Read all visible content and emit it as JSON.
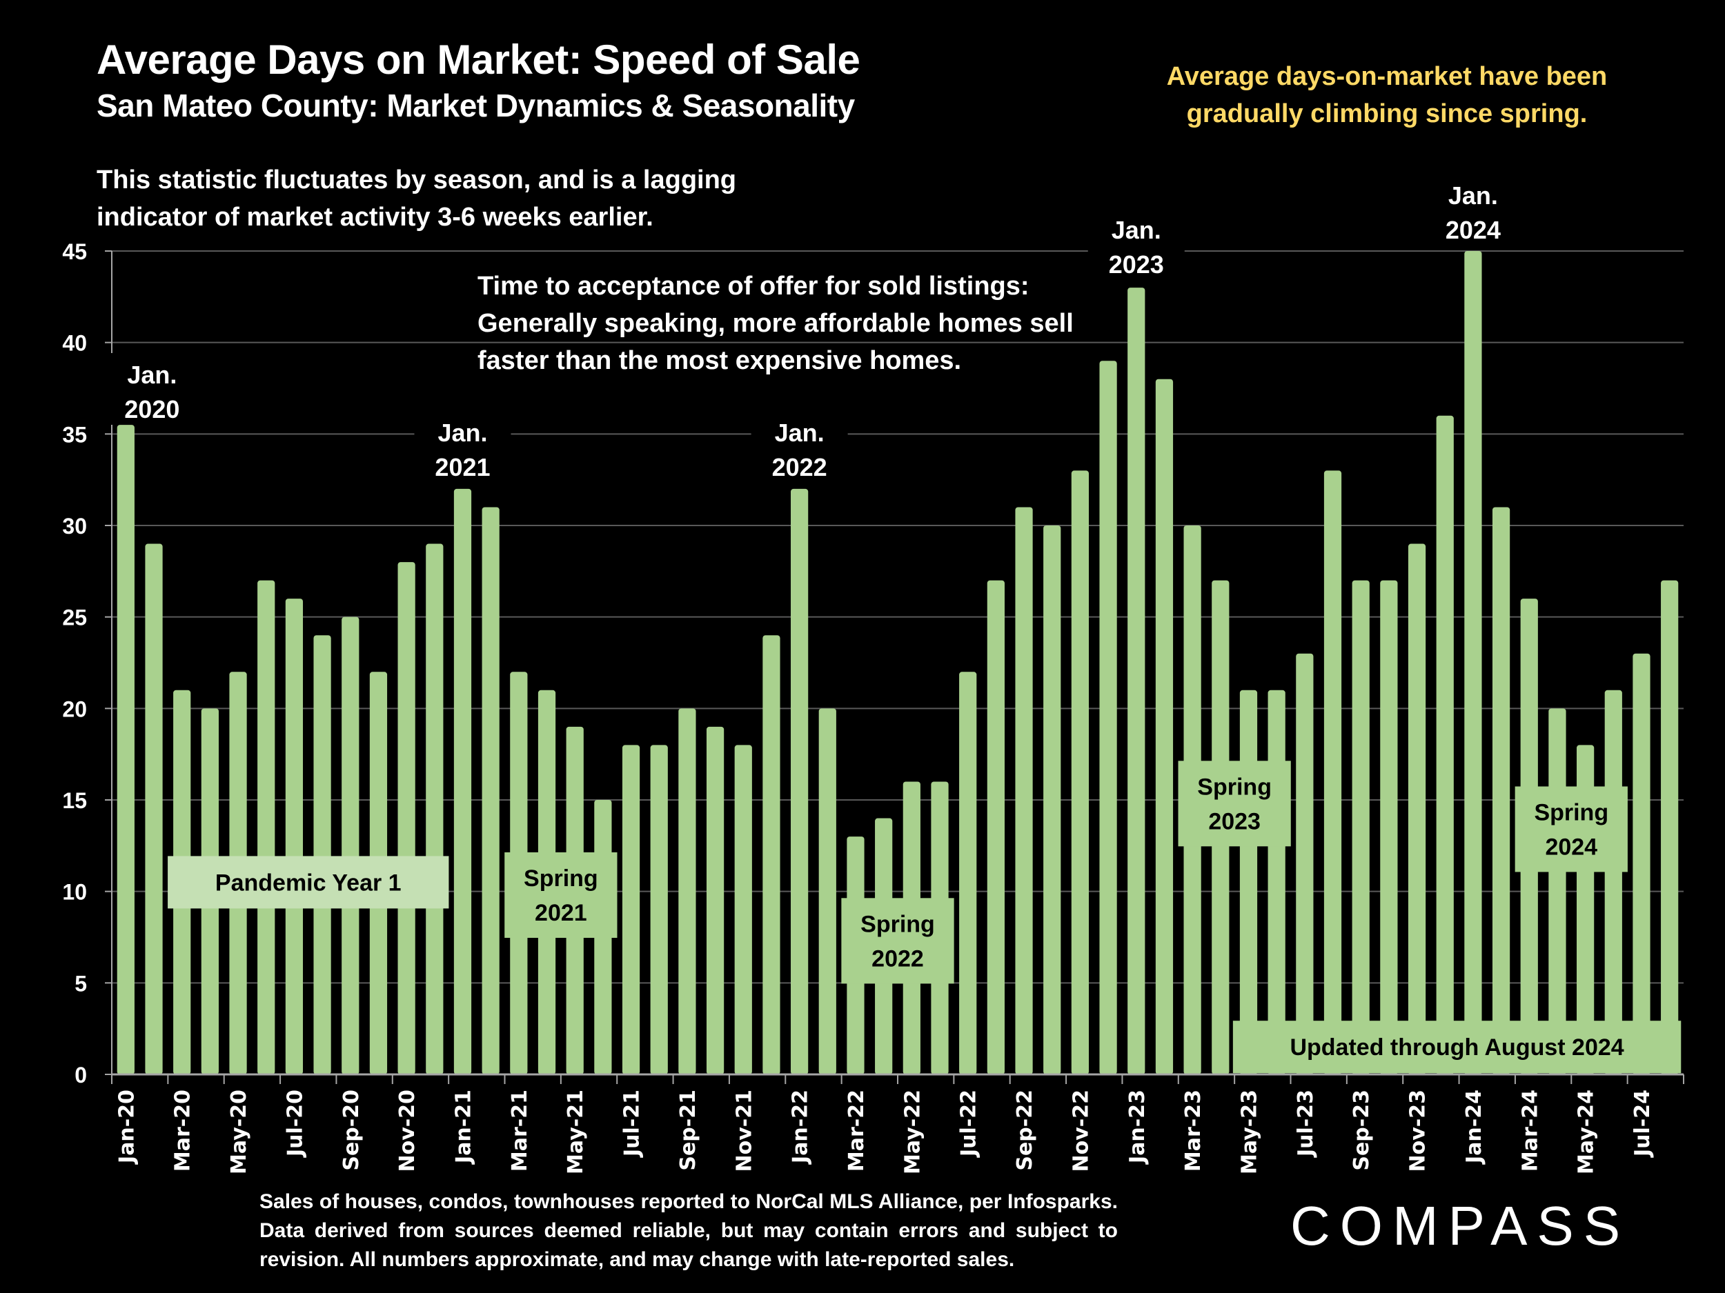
{
  "header": {
    "title": "Average Days on Market:  Speed of Sale",
    "subtitle": "San Mateo County: Market Dynamics & Seasonality",
    "callout": "Average days-on-market have been gradually climbing since spring.",
    "note_seasonality": "This statistic fluctuates by season, and is a lagging indicator of market activity 3-6 weeks earlier.",
    "note_affordability": "Time to acceptance of offer for sold listings: Generally speaking, more affordable homes sell faster than the most expensive homes."
  },
  "colors": {
    "background": "#000000",
    "bar": "#a9d18e",
    "label_box": "#a9d18e",
    "pandemic_box": "#c5e0b4",
    "callout_text": "#ffd966",
    "gridline": "#595959",
    "text": "#ffffff",
    "box_text": "#000000"
  },
  "footer": {
    "footnote": "Sales of houses, condos, townhouses reported to NorCal MLS Alliance, per Infosparks. Data derived from sources deemed reliable, but may contain errors and subject to revision. All numbers approximate, and may change with late-reported sales.",
    "brand": "COMPASS"
  },
  "chart_data": {
    "type": "bar",
    "title": "Average Days on Market: Speed of Sale",
    "xlabel": "",
    "ylabel": "",
    "ylim": [
      0,
      45
    ],
    "yticks": [
      0,
      5,
      10,
      15,
      20,
      25,
      30,
      35,
      40,
      45
    ],
    "grid": true,
    "legend": "none",
    "categories": [
      "Jan-20",
      "Feb-20",
      "Mar-20",
      "Apr-20",
      "May-20",
      "Jun-20",
      "Jul-20",
      "Aug-20",
      "Sep-20",
      "Oct-20",
      "Nov-20",
      "Dec-20",
      "Jan-21",
      "Feb-21",
      "Mar-21",
      "Apr-21",
      "May-21",
      "Jun-21",
      "Jul-21",
      "Aug-21",
      "Sep-21",
      "Oct-21",
      "Nov-21",
      "Dec-21",
      "Jan-22",
      "Feb-22",
      "Mar-22",
      "Apr-22",
      "May-22",
      "Jun-22",
      "Jul-22",
      "Aug-22",
      "Sep-22",
      "Oct-22",
      "Nov-22",
      "Dec-22",
      "Jan-23",
      "Feb-23",
      "Mar-23",
      "Apr-23",
      "May-23",
      "Jun-23",
      "Jul-23",
      "Aug-23",
      "Sep-23",
      "Oct-23",
      "Nov-23",
      "Dec-23",
      "Jan-24",
      "Feb-24",
      "Mar-24",
      "Apr-24",
      "May-24",
      "Jun-24",
      "Jul-24",
      "Aug-24"
    ],
    "tick_labels_shown": [
      "Jan-20",
      "Mar-20",
      "May-20",
      "Jul-20",
      "Sep-20",
      "Nov-20",
      "Jan-21",
      "Mar-21",
      "May-21",
      "Jul-21",
      "Sep-21",
      "Nov-21",
      "Jan-22",
      "Mar-22",
      "May-22",
      "Jul-22",
      "Sep-22",
      "Nov-22",
      "Jan-23",
      "Mar-23",
      "May-23",
      "Jul-23",
      "Sep-23",
      "Nov-23",
      "Jan-24",
      "Mar-24",
      "May-24",
      "Jul-24"
    ],
    "series": [
      {
        "name": "Average Days on Market",
        "values": [
          35.5,
          29,
          21,
          20,
          22,
          27,
          26,
          24,
          25,
          22,
          28,
          29,
          32,
          31,
          22,
          21,
          19,
          15,
          18,
          18,
          20,
          19,
          18,
          24,
          32,
          20,
          13,
          14,
          16,
          16,
          22,
          27,
          31,
          30,
          33,
          39,
          43,
          38,
          30,
          27,
          21,
          21,
          23,
          33,
          27,
          27,
          29,
          36,
          45,
          31,
          26,
          20,
          18,
          21,
          23,
          27
        ]
      }
    ],
    "annotations": [
      {
        "id": "jan2020",
        "text": "Jan. 2020",
        "at": "Jan-20",
        "kind": "peak"
      },
      {
        "id": "jan2021",
        "text": "Jan. 2021",
        "at": "Jan-21",
        "kind": "peak"
      },
      {
        "id": "jan2022",
        "text": "Jan. 2022",
        "at": "Jan-22",
        "kind": "peak"
      },
      {
        "id": "jan2023",
        "text": "Jan. 2023",
        "at": "Jan-23",
        "kind": "peak"
      },
      {
        "id": "jan2024",
        "text": "Jan. 2024",
        "at": "Jan-24",
        "kind": "peak"
      },
      {
        "id": "pandemic",
        "text": "Pandemic Year 1",
        "from": "Mar-20",
        "to": "Dec-20",
        "y": 10.5,
        "kind": "box-light"
      },
      {
        "id": "spring2021",
        "text": "Spring 2021",
        "from": "Mar-21",
        "to": "Jun-21",
        "y": 9.8,
        "kind": "box"
      },
      {
        "id": "spring2022",
        "text": "Spring 2022",
        "from": "Mar-22",
        "to": "Jun-22",
        "y": 7.3,
        "kind": "box"
      },
      {
        "id": "spring2023",
        "text": "Spring 2023",
        "from": "Mar-23",
        "to": "Jun-23",
        "y": 14.8,
        "kind": "box"
      },
      {
        "id": "spring2024",
        "text": "Spring 2024",
        "from": "Mar-24",
        "to": "Jun-24",
        "y": 13.4,
        "kind": "box"
      },
      {
        "id": "updated",
        "text": "Updated through August 2024",
        "from": "May-23",
        "to": "Aug-24",
        "y": 1.5,
        "kind": "box-wide"
      }
    ]
  }
}
